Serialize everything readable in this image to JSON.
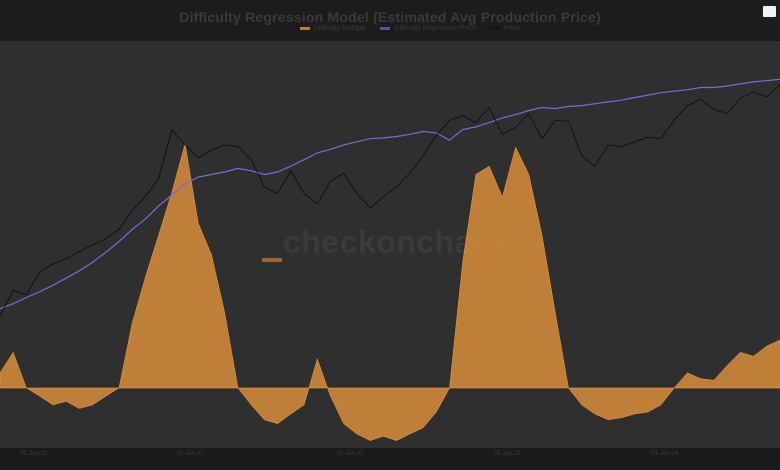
{
  "chart_data": {
    "type": "area",
    "title": "Difficulty Regression Model (Estimated Avg Production Price)",
    "legend": [
      "Difficulty Multiple",
      "Difficulty Regression Price",
      "Price"
    ],
    "watermark": "checkonchain",
    "x_tick_labels": [
      "01-Jan-20",
      "01-Jan-21",
      "01-Jan-22",
      "01-Jan-23",
      "01-Jan-24"
    ],
    "colors": {
      "multiple": "#e0913a",
      "regression": "#7b68d9",
      "price": "#0c0c0c"
    },
    "scale": "log",
    "series": [
      {
        "name": "Difficulty Multiple",
        "values": [
          1.1,
          1.25,
          1.0,
          0.95,
          0.9,
          0.92,
          0.88,
          0.9,
          0.95,
          1.0,
          1.5,
          2.0,
          2.6,
          3.4,
          4.6,
          2.8,
          2.3,
          1.6,
          1.0,
          0.9,
          0.82,
          0.8,
          0.85,
          0.9,
          1.2,
          0.95,
          0.8,
          0.75,
          0.72,
          0.74,
          0.72,
          0.75,
          0.78,
          0.86,
          1.0,
          2.2,
          3.8,
          4.0,
          3.3,
          4.5,
          3.8,
          2.6,
          1.6,
          1.0,
          0.9,
          0.85,
          0.82,
          0.83,
          0.85,
          0.86,
          0.9,
          1.0,
          1.1,
          1.06,
          1.05,
          1.15,
          1.25,
          1.22,
          1.3,
          1.35
        ]
      },
      {
        "name": "Difficulty Regression Price",
        "values": [
          4000,
          4300,
          4700,
          5100,
          5600,
          6200,
          6900,
          7800,
          9000,
          10500,
          12500,
          14500,
          17500,
          20500,
          24000,
          26500,
          27500,
          28500,
          30000,
          29000,
          27500,
          28500,
          31000,
          34000,
          37500,
          39500,
          42000,
          44000,
          46000,
          46500,
          47500,
          49000,
          51000,
          50000,
          45000,
          52500,
          54500,
          58000,
          62000,
          65000,
          69000,
          72000,
          71000,
          73000,
          74000,
          76000,
          78000,
          80000,
          83000,
          86000,
          89000,
          91000,
          93000,
          96000,
          96000,
          98000,
          101000,
          104000,
          106000,
          108000
        ]
      },
      {
        "name": "Price",
        "values": [
          3600,
          5200,
          4900,
          6800,
          7600,
          8200,
          9100,
          10000,
          10900,
          12500,
          16500,
          20000,
          26000,
          52000,
          42000,
          35000,
          39000,
          42000,
          41000,
          34000,
          23000,
          21000,
          29000,
          21000,
          18000,
          25000,
          28000,
          21000,
          17000,
          20000,
          23000,
          28000,
          36000,
          48000,
          60000,
          64000,
          58000,
          72000,
          49000,
          54000,
          66000,
          46000,
          60000,
          59000,
          36000,
          31000,
          42000,
          41000,
          44000,
          47000,
          46000,
          60000,
          74000,
          81000,
          70000,
          66000,
          82000,
          90000,
          84000,
          100000
        ]
      }
    ]
  }
}
